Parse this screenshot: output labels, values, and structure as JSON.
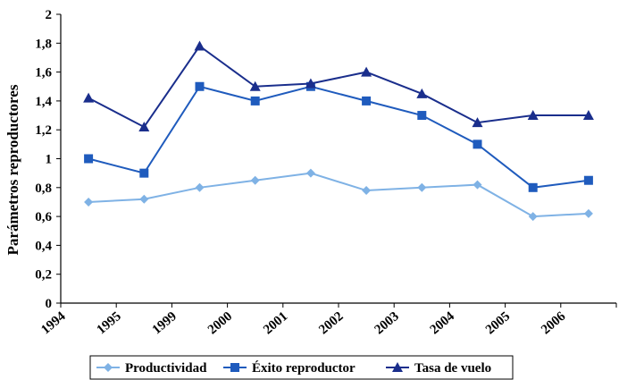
{
  "chart_data": {
    "type": "line",
    "title": "",
    "xlabel": "",
    "ylabel": "Parámetros reproductores",
    "categories": [
      "1994",
      "1995",
      "1999",
      "2000",
      "2001",
      "2002",
      "2003",
      "2004",
      "2005",
      "2006"
    ],
    "ylim": [
      0,
      2
    ],
    "yticks": [
      "0",
      "0,2",
      "0,4",
      "0,6",
      "0,8",
      "1",
      "1,2",
      "1,4",
      "1,6",
      "1,8",
      "2"
    ],
    "grid": false,
    "legend_position": "bottom",
    "series": [
      {
        "name": "Productividad",
        "color": "#7fb2e5",
        "marker": "diamond",
        "values": [
          0.7,
          0.72,
          0.8,
          0.85,
          0.9,
          0.78,
          0.8,
          0.82,
          0.6,
          0.62
        ]
      },
      {
        "name": "Éxito reproductor",
        "color": "#1f5bbd",
        "marker": "square",
        "values": [
          1.0,
          0.9,
          1.5,
          1.4,
          1.5,
          1.4,
          1.3,
          1.1,
          0.8,
          0.85
        ]
      },
      {
        "name": "Tasa de vuelo",
        "color": "#1a2e8c",
        "marker": "triangle",
        "values": [
          1.42,
          1.22,
          1.78,
          1.5,
          1.52,
          1.6,
          1.45,
          1.25,
          1.3,
          1.3
        ]
      }
    ]
  }
}
